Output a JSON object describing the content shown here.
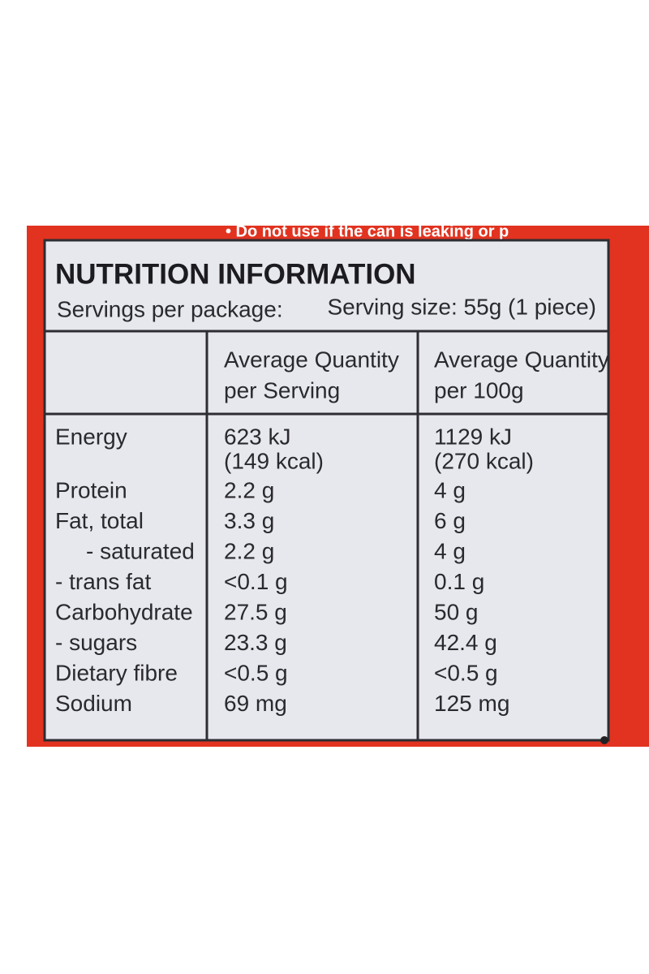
{
  "banner": "• Do not use if the can is leaking or p",
  "header": {
    "title": "NUTRITION INFORMATION",
    "servings_per_package": "Servings per package:",
    "serving_size": "Serving size: 55g (1 piece)"
  },
  "table": {
    "columns": [
      [
        "Average Quantity",
        "per Serving"
      ],
      [
        "Average Quantity",
        "per 100g"
      ]
    ],
    "rows": [
      {
        "label": "Energy",
        "per_serving": [
          "623 kJ",
          "(149 kcal)"
        ],
        "per_100g": [
          "1129 kJ",
          "(270 kcal)"
        ]
      },
      {
        "label": "Protein",
        "per_serving": [
          "2.2 g"
        ],
        "per_100g": [
          "4 g"
        ]
      },
      {
        "label": "Fat, total",
        "per_serving": [
          "3.3 g"
        ],
        "per_100g": [
          "6 g"
        ]
      },
      {
        "label": "- saturated",
        "per_serving": [
          "2.2 g"
        ],
        "per_100g": [
          "4 g"
        ]
      },
      {
        "label": "- trans fat",
        "per_serving": [
          "<0.1 g"
        ],
        "per_100g": [
          "0.1 g"
        ]
      },
      {
        "label": "Carbohydrate",
        "per_serving": [
          "27.5 g"
        ],
        "per_100g": [
          "50 g"
        ]
      },
      {
        "label": "- sugars",
        "per_serving": [
          "23.3 g"
        ],
        "per_100g": [
          "42.4 g"
        ]
      },
      {
        "label": "Dietary fibre",
        "per_serving": [
          "<0.5 g"
        ],
        "per_100g": [
          "<0.5 g"
        ]
      },
      {
        "label": "Sodium",
        "per_serving": [
          "69 mg"
        ],
        "per_100g": [
          "125 mg"
        ]
      }
    ]
  }
}
